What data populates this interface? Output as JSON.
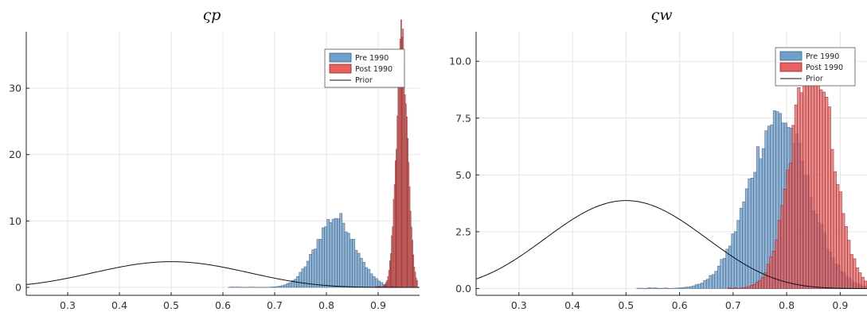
{
  "chart_data": [
    {
      "type": "histogram",
      "title": "ςp",
      "xlabel": "",
      "ylabel": "",
      "xlim": [
        0.22,
        0.98
      ],
      "ylim": [
        -1.2,
        38.5
      ],
      "xticks": [
        0.3,
        0.4,
        0.5,
        0.6,
        0.7,
        0.8,
        0.9
      ],
      "xtick_labels": [
        "0.3",
        "0.4",
        "0.5",
        "0.6",
        "0.7",
        "0.8",
        "0.9"
      ],
      "yticks": [
        0,
        10,
        20,
        30
      ],
      "ytick_labels": [
        "0",
        "10",
        "20",
        "30"
      ],
      "grid": true,
      "legend": {
        "position": "top-right",
        "entries": [
          "Pre 1990",
          "Post 1990",
          "Prior"
        ]
      },
      "series": [
        {
          "name": "Pre 1990",
          "kind": "histogram",
          "color": "#6f9fcb",
          "edge": "#3f5f80",
          "center": 0.818,
          "sd": 0.038,
          "peak": 10.6,
          "range": [
            0.61,
            0.96
          ],
          "bin_width": 0.0049
        },
        {
          "name": "Post 1990",
          "kind": "histogram",
          "color": "#e86060",
          "edge": "#8a2a2a",
          "center": 0.946,
          "sd": 0.0108,
          "peak": 37.0,
          "range": [
            0.895,
            0.975
          ],
          "bin_width": 0.0018
        },
        {
          "name": "Prior",
          "kind": "line",
          "color": "#111111",
          "curve": "beta",
          "mean": 0.5,
          "peak": 3.87,
          "range": [
            0.22,
            0.98
          ]
        }
      ]
    },
    {
      "type": "histogram",
      "title": "ςw",
      "xlabel": "",
      "ylabel": "",
      "xlim": [
        0.22,
        0.95
      ],
      "ylim": [
        -0.3,
        11.3
      ],
      "xticks": [
        0.3,
        0.4,
        0.5,
        0.6,
        0.7,
        0.8,
        0.9
      ],
      "xtick_labels": [
        "0.3",
        "0.4",
        "0.5",
        "0.6",
        "0.7",
        "0.8",
        "0.9"
      ],
      "yticks": [
        0,
        2.5,
        5,
        7.5,
        10
      ],
      "ytick_labels": [
        "0.0",
        "2.5",
        "5.0",
        "7.5",
        "10.0"
      ],
      "grid": true,
      "legend": {
        "position": "top-right",
        "entries": [
          "Pre 1990",
          "Post 1990",
          "Prior"
        ]
      },
      "series": [
        {
          "name": "Pre 1990",
          "kind": "histogram",
          "color": "#6f9fcb",
          "edge": "#3f5f80",
          "center": 0.785,
          "sd": 0.055,
          "peak": 7.6,
          "range": [
            0.52,
            0.95
          ],
          "bin_width": 0.0052
        },
        {
          "name": "Post 1990",
          "kind": "histogram",
          "color": "#e86060",
          "edge": "#8a2a2a",
          "center": 0.848,
          "sd": 0.038,
          "peak": 10.5,
          "range": [
            0.69,
            0.95
          ],
          "bin_width": 0.0052
        },
        {
          "name": "Prior",
          "kind": "line",
          "color": "#111111",
          "curve": "beta",
          "mean": 0.5,
          "peak": 3.87,
          "range": [
            0.22,
            0.95
          ]
        }
      ]
    }
  ]
}
